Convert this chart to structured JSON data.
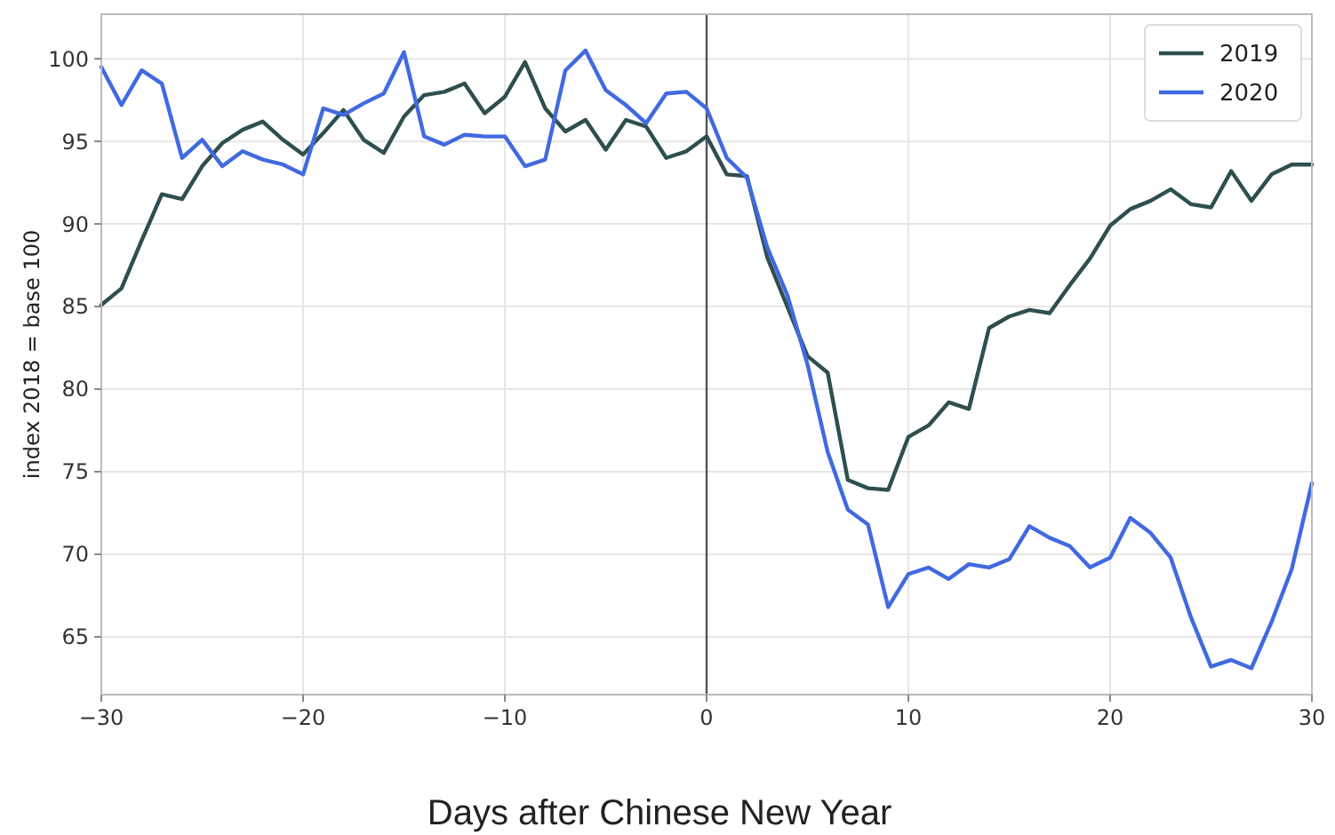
{
  "chart_data": {
    "type": "line",
    "xlabel": "Days after Chinese New Year",
    "ylabel": "index 2018 = base 100",
    "x": [
      -30,
      -29,
      -28,
      -27,
      -26,
      -25,
      -24,
      -23,
      -22,
      -21,
      -20,
      -19,
      -18,
      -17,
      -16,
      -15,
      -14,
      -13,
      -12,
      -11,
      -10,
      -9,
      -8,
      -7,
      -6,
      -5,
      -4,
      -3,
      -2,
      -1,
      0,
      1,
      2,
      3,
      4,
      5,
      6,
      7,
      8,
      9,
      10,
      11,
      12,
      13,
      14,
      15,
      16,
      17,
      18,
      19,
      20,
      21,
      22,
      23,
      24,
      25,
      26,
      27,
      28,
      29,
      30
    ],
    "series": [
      {
        "name": "2019",
        "color": "#2f4f4f",
        "values": [
          85.1,
          86.1,
          89.0,
          91.8,
          91.5,
          93.5,
          94.9,
          95.7,
          96.2,
          95.1,
          94.2,
          95.5,
          96.9,
          95.1,
          94.3,
          96.5,
          97.8,
          98.0,
          98.5,
          96.7,
          97.7,
          99.8,
          97.0,
          95.6,
          96.3,
          94.5,
          96.3,
          95.9,
          94.0,
          94.4,
          95.3,
          93.0,
          92.9,
          88.0,
          85.0,
          82.0,
          81.0,
          74.5,
          74.0,
          73.9,
          77.1,
          77.8,
          79.2,
          78.8,
          83.7,
          84.4,
          84.8,
          84.6,
          86.3,
          87.9,
          89.9,
          90.9,
          91.4,
          92.1,
          91.2,
          91.0,
          93.2,
          91.4,
          93.0,
          93.6,
          93.6
        ]
      },
      {
        "name": "2020",
        "color": "#4169e1",
        "values": [
          99.5,
          97.2,
          99.3,
          98.5,
          94.0,
          95.1,
          93.5,
          94.4,
          93.9,
          93.6,
          93.0,
          97.0,
          96.6,
          97.3,
          97.9,
          100.4,
          95.3,
          94.8,
          95.4,
          95.3,
          95.3,
          93.5,
          93.9,
          99.3,
          100.5,
          98.1,
          97.2,
          96.1,
          97.9,
          98.0,
          97.0,
          94.0,
          92.8,
          88.6,
          85.7,
          81.5,
          76.2,
          72.7,
          71.8,
          66.8,
          68.8,
          69.2,
          68.5,
          69.4,
          69.2,
          69.7,
          71.7,
          71.0,
          70.5,
          69.2,
          69.8,
          72.2,
          71.3,
          69.8,
          66.2,
          63.2,
          63.6,
          63.1,
          65.9,
          69.1,
          74.3
        ]
      }
    ],
    "xlim": [
      -30,
      30
    ],
    "xticks": [
      {
        "value": -30,
        "label": "−30"
      },
      {
        "value": -20,
        "label": "−20"
      },
      {
        "value": -10,
        "label": "−10"
      },
      0,
      10,
      20,
      30
    ],
    "ylim": [
      61.5,
      102.7
    ],
    "yticks": [
      65,
      70,
      75,
      80,
      85,
      90,
      95,
      100
    ],
    "ref_lines": [
      {
        "axis": "x",
        "value": 0,
        "color": "#555555"
      }
    ],
    "grid": true,
    "legend": "top right",
    "line_style": "solid",
    "marker": "none"
  }
}
